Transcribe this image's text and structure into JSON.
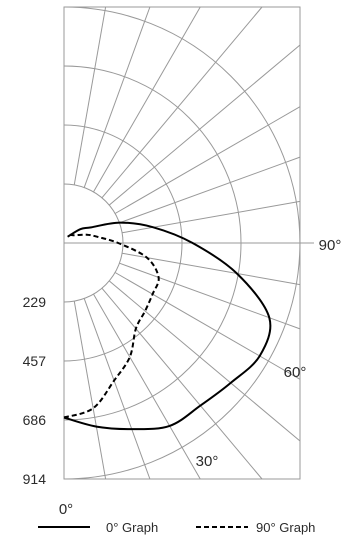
{
  "chart_data": {
    "type": "polar",
    "title": "",
    "radial_ticks": [
      "229",
      "457",
      "686",
      "914"
    ],
    "r_max": 914,
    "angle_labels": [
      "0°",
      "30°",
      "60°",
      "90°"
    ],
    "angle_values_deg": [
      0,
      30,
      60,
      90
    ],
    "grid": true,
    "legend_position": "bottom",
    "series": [
      {
        "name": "0° Graph",
        "style": "solid",
        "points": [
          {
            "angle": 0,
            "r": 676
          },
          {
            "angle": 10,
            "r": 722
          },
          {
            "angle": 20,
            "r": 767
          },
          {
            "angle": 30,
            "r": 818
          },
          {
            "angle": 40,
            "r": 822
          },
          {
            "angle": 50,
            "r": 843
          },
          {
            "angle": 60,
            "r": 875
          },
          {
            "angle": 70,
            "r": 846
          },
          {
            "angle": 80,
            "r": 680
          },
          {
            "angle": 90,
            "r": 498
          },
          {
            "angle": 100,
            "r": 351
          },
          {
            "angle": 110,
            "r": 231
          },
          {
            "angle": 120,
            "r": 121
          },
          {
            "angle": 130,
            "r": 84
          },
          {
            "angle": 150,
            "r": 28
          }
        ]
      },
      {
        "name": "90° Graph",
        "style": "dashed",
        "points": [
          {
            "angle": 0,
            "r": 676
          },
          {
            "angle": 10,
            "r": 650
          },
          {
            "angle": 20,
            "r": 567
          },
          {
            "angle": 30,
            "r": 510
          },
          {
            "angle": 40,
            "r": 433
          },
          {
            "angle": 50,
            "r": 410
          },
          {
            "angle": 60,
            "r": 396
          },
          {
            "angle": 70,
            "r": 390
          },
          {
            "angle": 80,
            "r": 326
          },
          {
            "angle": 90,
            "r": 210
          },
          {
            "angle": 100,
            "r": 134
          },
          {
            "angle": 110,
            "r": 94
          },
          {
            "angle": 130,
            "r": 47
          },
          {
            "angle": 160,
            "r": 37
          }
        ]
      }
    ]
  },
  "colors": {
    "grid": "#999999",
    "line": "#000000",
    "text": "#2b2b2b"
  }
}
